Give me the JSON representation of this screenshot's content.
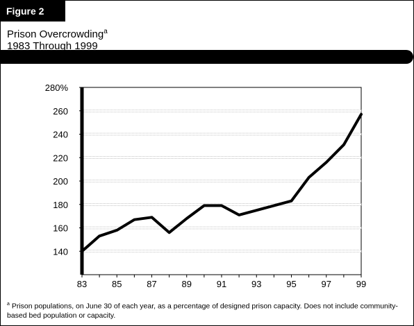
{
  "figure_label": "Figure 2",
  "title_line1": "Prison Overcrowding",
  "title_sup": "a",
  "title_line2": "1983 Through 1999",
  "footnote_marker": "a",
  "footnote_text": "Prison populations, on June 30 of each year, as a percentage of designed prison capacity. Does not include community-based bed population or capacity.",
  "chart_data": {
    "type": "line",
    "x": [
      83,
      84,
      85,
      86,
      87,
      88,
      89,
      90,
      91,
      92,
      93,
      94,
      95,
      96,
      97,
      98,
      99
    ],
    "series": [
      {
        "values": [
          140,
          153,
          158,
          167,
          169,
          156,
          168,
          179,
          179,
          171,
          175,
          179,
          183,
          203,
          216,
          231,
          257
        ]
      }
    ],
    "ylim": [
      120,
      280
    ],
    "xlim": [
      83,
      99
    ],
    "yticks": [
      140,
      160,
      180,
      200,
      220,
      240,
      260,
      280
    ],
    "ytick_labels": [
      "140",
      "160",
      "180",
      "200",
      "220",
      "240",
      "260",
      "280%"
    ],
    "xtick_labels": [
      "83",
      "85",
      "87",
      "89",
      "91",
      "93",
      "95",
      "97",
      "99"
    ],
    "grid": "horizontal dotted"
  }
}
